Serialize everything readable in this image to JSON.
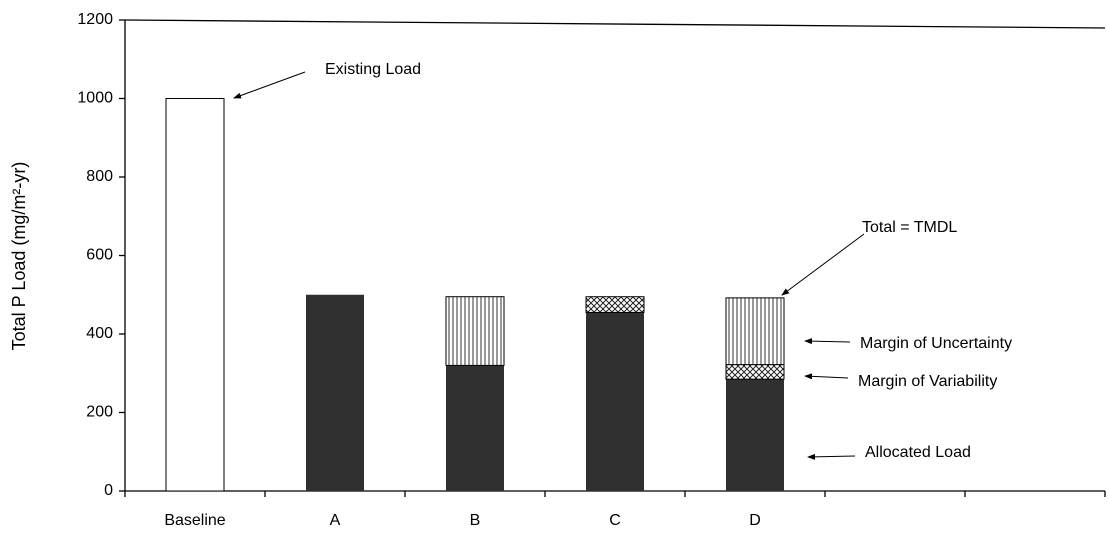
{
  "chart_data": {
    "type": "stacked_bar",
    "y_label": "Total P Load (mg/m²-yr)",
    "categories": [
      "Baseline",
      "A",
      "B",
      "C",
      "D",
      null,
      null
    ],
    "series": [
      {
        "name": "Existing Load",
        "color": "#ffffff",
        "values": [
          1000,
          null,
          null,
          null,
          null,
          null,
          null
        ]
      },
      {
        "name": "Allocated Load",
        "color": "#303030",
        "values": [
          null,
          500,
          320,
          455,
          285,
          null,
          null
        ]
      },
      {
        "name": "Margin of Variability",
        "color": "#ffffff",
        "pattern": "crosshatch",
        "values": [
          null,
          null,
          null,
          40,
          37,
          null,
          null
        ]
      },
      {
        "name": "Margin of Uncertainty",
        "color": "#ffffff",
        "pattern": "vertical",
        "values": [
          null,
          null,
          175,
          null,
          170,
          null,
          null
        ]
      }
    ],
    "annotations": [
      "Total = TMDL"
    ],
    "ylim": [
      0,
      1200
    ],
    "yticks": [
      0,
      200,
      400,
      600,
      800,
      1000,
      1200
    ]
  }
}
